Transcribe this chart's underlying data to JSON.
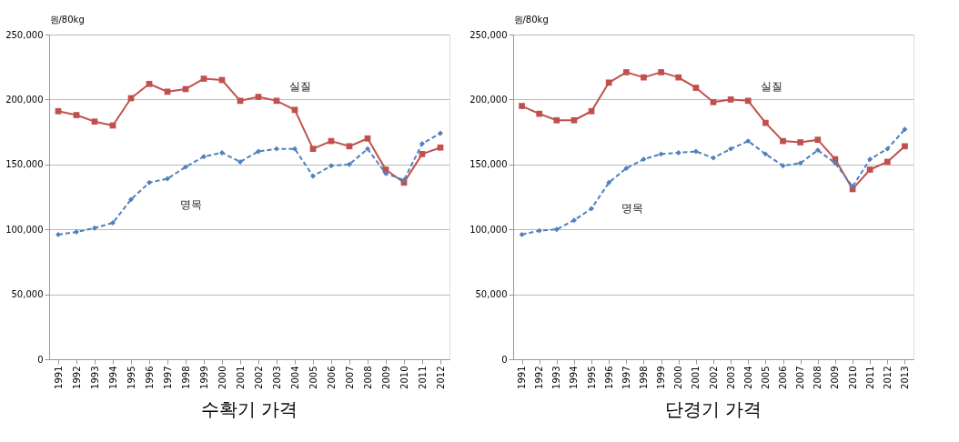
{
  "chart_data": [
    {
      "type": "line",
      "title": "수확기 가격",
      "ylabel": "원/80kg",
      "categories": [
        "1991",
        "1992",
        "1993",
        "1994",
        "1995",
        "1996",
        "1997",
        "1998",
        "1999",
        "2000",
        "2001",
        "2002",
        "2003",
        "2004",
        "2005",
        "2006",
        "2007",
        "2008",
        "2009",
        "2010",
        "2011",
        "2012"
      ],
      "series": [
        {
          "color": "#c0504d",
          "marker": "square",
          "line_style": "solid",
          "values": [
            191000,
            188000,
            183000,
            180000,
            201000,
            212000,
            206000,
            208000,
            216000,
            215000,
            199000,
            202000,
            199000,
            192000,
            162000,
            168000,
            164000,
            170000,
            146000,
            136000,
            158000,
            163000
          ]
        },
        {
          "color": "#4f81bd",
          "marker": "diamond",
          "line_style": "dashed",
          "values": [
            96000,
            98000,
            101000,
            105000,
            123000,
            136000,
            139000,
            148000,
            156000,
            159000,
            152000,
            160000,
            162000,
            162000,
            141000,
            149000,
            150000,
            162000,
            143000,
            138000,
            166000,
            174000
          ]
        }
      ],
      "ylim": [
        0,
        250000
      ],
      "yticks": [
        0,
        {
          "value": 50000,
          "label": "50,000"
        },
        {
          "value": 100000,
          "label": "100,000"
        },
        {
          "value": 150000,
          "label": "150,000"
        },
        {
          "value": 200000,
          "label": "200,000"
        },
        {
          "value": 250000,
          "label": "250,000"
        }
      ],
      "grid": "y",
      "annotations": [
        {
          "text": "실질",
          "x": "2003",
          "y": 199000
        },
        {
          "text": "명목",
          "x": "1997",
          "y": 139000
        }
      ]
    },
    {
      "type": "line",
      "title": "단경기 가격",
      "ylabel": "원/80kg",
      "categories": [
        "1991",
        "1992",
        "1993",
        "1994",
        "1995",
        "1996",
        "1997",
        "1998",
        "1999",
        "2000",
        "2001",
        "2002",
        "2003",
        "2004",
        "2005",
        "2006",
        "2007",
        "2008",
        "2009",
        "2010",
        "2011",
        "2012",
        "2013"
      ],
      "series": [
        {
          "color": "#c0504d",
          "marker": "square",
          "line_style": "solid",
          "values": [
            195000,
            189000,
            184000,
            184000,
            191000,
            213000,
            221000,
            217000,
            221000,
            217000,
            209000,
            198000,
            200000,
            199000,
            182000,
            168000,
            167000,
            169000,
            154000,
            131000,
            146000,
            152000,
            164000
          ]
        },
        {
          "color": "#4f81bd",
          "marker": "diamond",
          "line_style": "dashed",
          "values": [
            96000,
            99000,
            100000,
            107000,
            116000,
            136000,
            147000,
            154000,
            158000,
            159000,
            160000,
            155000,
            162000,
            168000,
            158000,
            149000,
            151000,
            161000,
            151000,
            133000,
            154000,
            162000,
            177000
          ]
        }
      ],
      "ylim": [
        0,
        250000
      ],
      "yticks": [
        0,
        {
          "value": 50000,
          "label": "50,000"
        },
        {
          "value": 100000,
          "label": "100,000"
        },
        {
          "value": 150000,
          "label": "150,000"
        },
        {
          "value": 200000,
          "label": "200,000"
        },
        {
          "value": 250000,
          "label": "250,000"
        }
      ],
      "grid": "y",
      "annotations": [
        {
          "text": "실질",
          "x": "2004",
          "y": 199000
        },
        {
          "text": "명목",
          "x": "1996",
          "y": 136000
        }
      ]
    }
  ]
}
